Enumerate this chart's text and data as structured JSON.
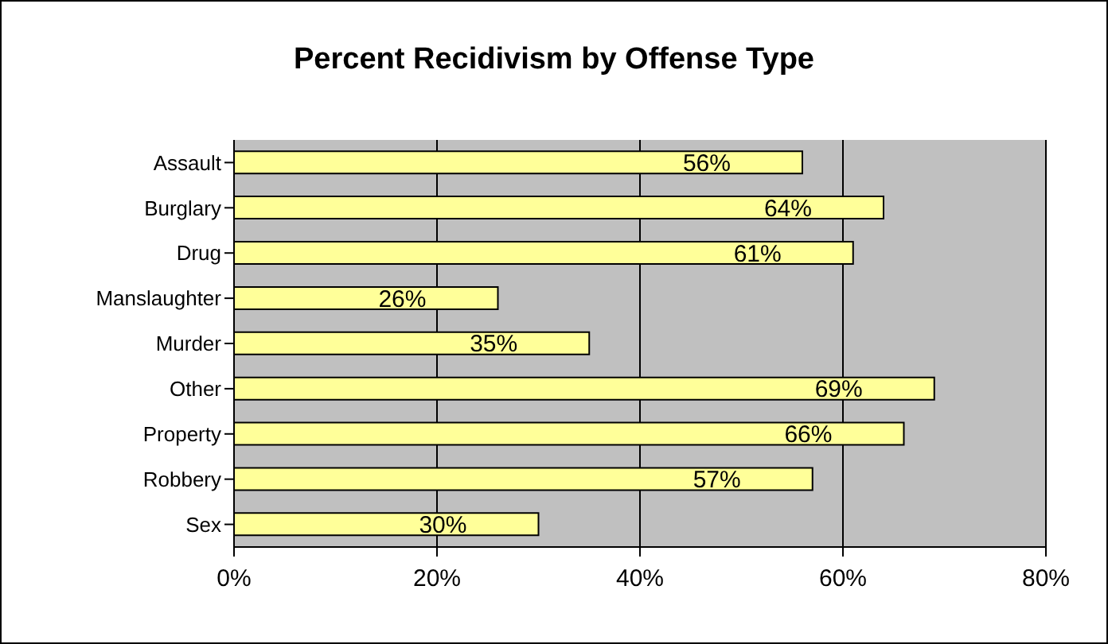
{
  "chart_data": {
    "type": "bar",
    "orientation": "horizontal",
    "title": "Percent Recidivism by  Offense Type",
    "categories": [
      "Assault",
      "Burglary",
      "Drug",
      "Manslaughter",
      "Murder",
      "Other",
      "Property",
      "Robbery",
      "Sex"
    ],
    "values": [
      56,
      64,
      61,
      26,
      35,
      69,
      66,
      57,
      30
    ],
    "value_labels": [
      "56%",
      "64%",
      "61%",
      "26%",
      "35%",
      "69%",
      "66%",
      "57%",
      "30%"
    ],
    "color": "#ffff99",
    "xlim": [
      0,
      80
    ],
    "xticks": [
      {
        "value": 0,
        "label": "0%"
      },
      {
        "value": 20,
        "label": "20%"
      },
      {
        "value": 40,
        "label": "40%"
      },
      {
        "value": 60,
        "label": "60%"
      },
      {
        "value": 80,
        "label": "80%"
      }
    ],
    "grid": "x",
    "legend": false
  }
}
